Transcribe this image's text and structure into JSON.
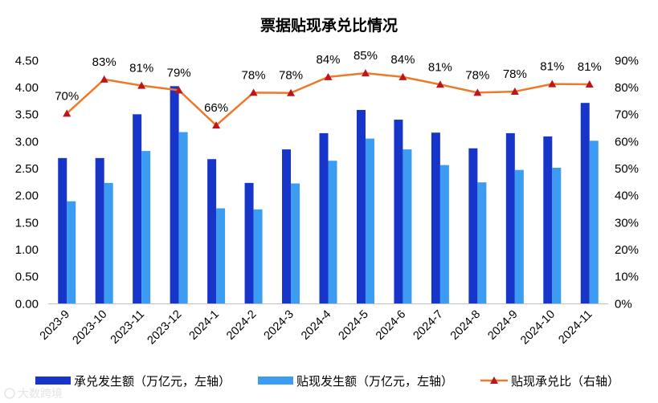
{
  "chart_data": {
    "type": "bar",
    "title": "票据贴现承兑比情况",
    "categories": [
      "2023-9",
      "2023-10",
      "2023-11",
      "2023-12",
      "2024-1",
      "2024-2",
      "2024-3",
      "2024-4",
      "2024-5",
      "2024-6",
      "2024-7",
      "2024-8",
      "2024-9",
      "2024-10",
      "2024-11"
    ],
    "series": [
      {
        "name": "承兑发生额（万亿元，左轴）",
        "type": "bar",
        "axis": "left",
        "color": "#1736C9",
        "values": [
          2.69,
          2.69,
          3.5,
          4.02,
          2.67,
          2.23,
          2.85,
          3.15,
          3.58,
          3.4,
          3.16,
          2.87,
          3.15,
          3.09,
          3.71
        ]
      },
      {
        "name": "贴现发生额（万亿元，左轴）",
        "type": "bar",
        "axis": "left",
        "color": "#3C9CF2",
        "values": [
          1.89,
          2.23,
          2.82,
          3.17,
          1.76,
          1.74,
          2.22,
          2.64,
          3.05,
          2.85,
          2.56,
          2.24,
          2.47,
          2.51,
          3.01
        ]
      },
      {
        "name": "贴现承兑比（右轴）",
        "type": "line",
        "axis": "right",
        "color": "#EC7A28",
        "marker_color": "#C0141B",
        "values": [
          70.3,
          82.9,
          80.6,
          78.9,
          65.9,
          78.0,
          77.9,
          83.8,
          85.2,
          83.8,
          81.0,
          78.0,
          78.4,
          81.2,
          81.1
        ],
        "data_labels": [
          "70%",
          "83%",
          "81%",
          "79%",
          "66%",
          "78%",
          "78%",
          "84%",
          "85%",
          "84%",
          "81%",
          "78%",
          "78%",
          "81%",
          "81%"
        ]
      }
    ],
    "ylim": [
      0,
      4.5
    ],
    "y_ticks": [
      "0.00",
      "0.50",
      "1.00",
      "1.50",
      "2.00",
      "2.50",
      "3.00",
      "3.50",
      "4.00",
      "4.50"
    ],
    "y2lim": [
      0,
      90
    ],
    "y2_ticks": [
      "0%",
      "10%",
      "20%",
      "30%",
      "40%",
      "50%",
      "60%",
      "70%",
      "80%",
      "90%"
    ],
    "grid": false,
    "legend": "bottom"
  },
  "watermark": "大数跨境"
}
